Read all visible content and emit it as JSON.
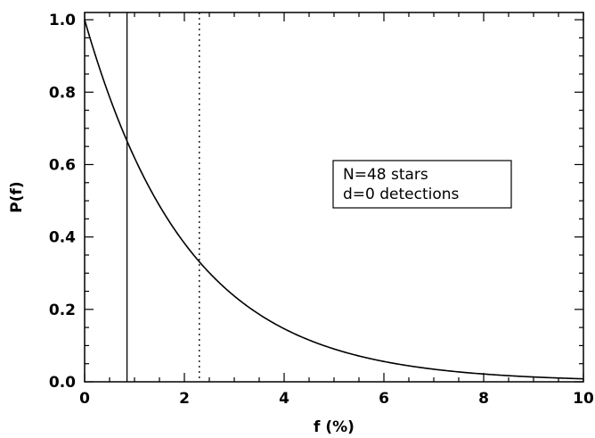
{
  "chart_data": {
    "type": "line",
    "xlabel": "f (%)",
    "ylabel": "P(f)",
    "xlim": [
      0,
      10
    ],
    "ylim": [
      0,
      1.02
    ],
    "x_ticks": [
      0,
      2,
      4,
      6,
      8,
      10
    ],
    "x_tick_labels": [
      "0",
      "2",
      "4",
      "6",
      "8",
      "10"
    ],
    "y_ticks": [
      0.0,
      0.2,
      0.4,
      0.6,
      0.8,
      1.0
    ],
    "y_tick_labels": [
      "0.0",
      "0.2",
      "0.4",
      "0.6",
      "0.8",
      "1.0"
    ],
    "series": [
      {
        "style": "solid",
        "function": "exp(-N*f/100)",
        "x": [
          0,
          0.5,
          1,
          1.5,
          2,
          2.5,
          3,
          3.5,
          4,
          4.5,
          5,
          5.5,
          6,
          6.5,
          7,
          7.5,
          8,
          8.5,
          9,
          9.5,
          10
        ],
        "y": [
          1.0,
          0.787,
          0.619,
          0.487,
          0.383,
          0.301,
          0.237,
          0.186,
          0.147,
          0.115,
          0.091,
          0.071,
          0.056,
          0.044,
          0.035,
          0.027,
          0.021,
          0.017,
          0.013,
          0.01,
          0.008
        ]
      }
    ],
    "vertical_lines": [
      {
        "x": 0.85,
        "style": "solid"
      },
      {
        "x": 2.3,
        "style": "dotted"
      }
    ],
    "annotation": {
      "lines": [
        "N=48 stars",
        "d=0 detections"
      ]
    },
    "N": 48,
    "grid": false
  }
}
